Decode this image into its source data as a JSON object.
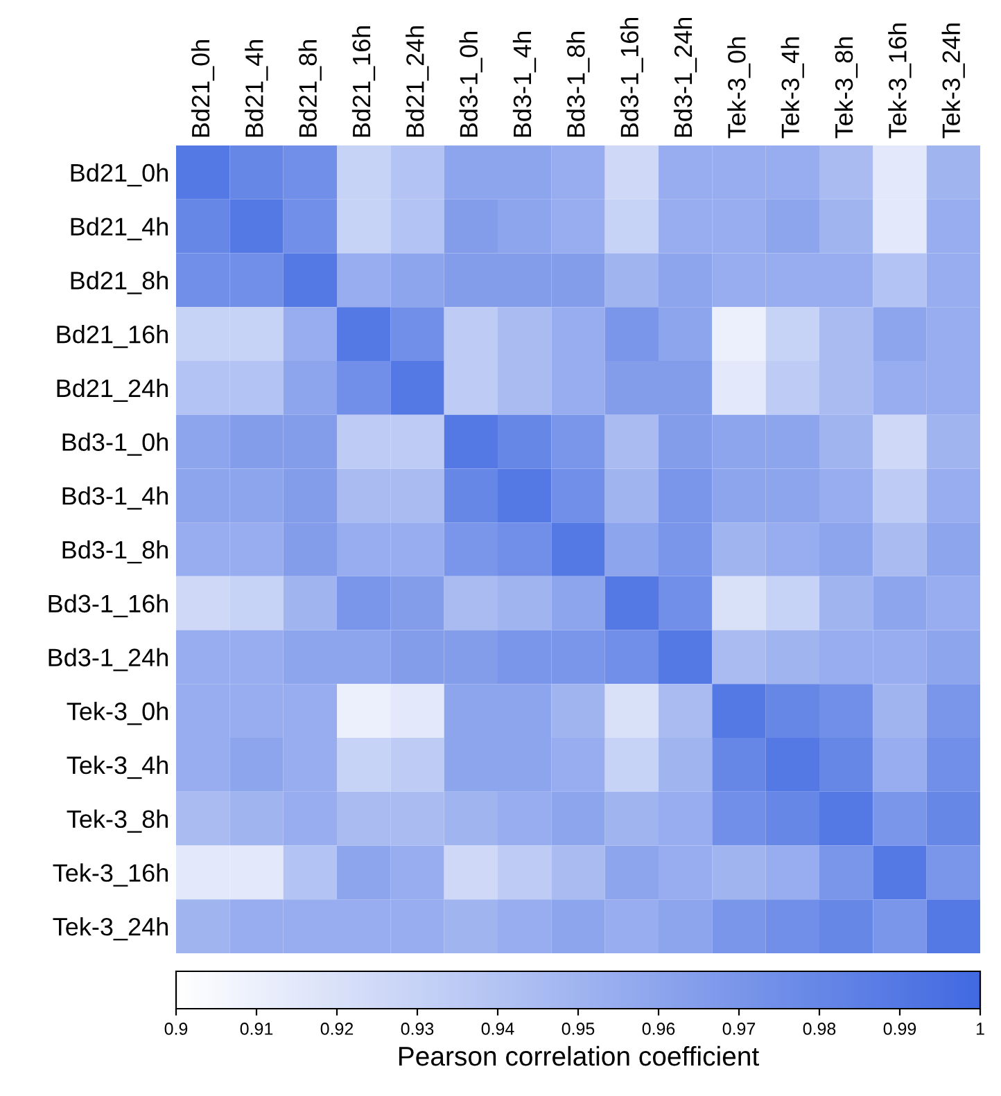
{
  "chart_data": {
    "type": "heatmap",
    "clabel": "Pearson correlation coefficient",
    "categories": [
      "Bd21_0h",
      "Bd21_4h",
      "Bd21_8h",
      "Bd21_16h",
      "Bd21_24h",
      "Bd3-1_0h",
      "Bd3-1_4h",
      "Bd3-1_8h",
      "Bd3-1_16h",
      "Bd3-1_24h",
      "Tek-3_0h",
      "Tek-3_4h",
      "Tek-3_8h",
      "Tek-3_16h",
      "Tek-3_24h"
    ],
    "y_categories": [
      "Bd21_0h",
      "Bd21_4h",
      "Bd21_8h",
      "Bd21_16h",
      "Bd21_24h",
      "Bd3-1_0h",
      "Bd3-1_4h",
      "Bd3-1_8h",
      "Bd3-1_16h",
      "Bd3-1_24h",
      "Tek-3_0h",
      "Tek-3_4h",
      "Tek-3_8h",
      "Tek-3_16h",
      "Tek-3_24h"
    ],
    "cells": [
      [
        0.99,
        0.98,
        0.975,
        0.93,
        0.94,
        0.96,
        0.96,
        0.955,
        0.925,
        0.955,
        0.955,
        0.955,
        0.945,
        0.915,
        0.95
      ],
      [
        0.98,
        0.99,
        0.975,
        0.93,
        0.94,
        0.965,
        0.96,
        0.955,
        0.93,
        0.955,
        0.955,
        0.96,
        0.95,
        0.915,
        0.955
      ],
      [
        0.975,
        0.975,
        0.99,
        0.955,
        0.96,
        0.965,
        0.965,
        0.965,
        0.95,
        0.96,
        0.955,
        0.955,
        0.955,
        0.94,
        0.955
      ],
      [
        0.93,
        0.93,
        0.955,
        0.99,
        0.975,
        0.935,
        0.945,
        0.955,
        0.97,
        0.96,
        0.91,
        0.93,
        0.945,
        0.96,
        0.955
      ],
      [
        0.94,
        0.94,
        0.96,
        0.975,
        0.99,
        0.935,
        0.945,
        0.955,
        0.965,
        0.965,
        0.915,
        0.935,
        0.945,
        0.955,
        0.955
      ],
      [
        0.96,
        0.965,
        0.965,
        0.935,
        0.935,
        0.99,
        0.98,
        0.97,
        0.945,
        0.965,
        0.96,
        0.96,
        0.95,
        0.925,
        0.95
      ],
      [
        0.96,
        0.96,
        0.965,
        0.945,
        0.945,
        0.98,
        0.99,
        0.975,
        0.95,
        0.97,
        0.96,
        0.96,
        0.955,
        0.935,
        0.955
      ],
      [
        0.955,
        0.955,
        0.965,
        0.955,
        0.955,
        0.97,
        0.975,
        0.99,
        0.96,
        0.97,
        0.95,
        0.955,
        0.96,
        0.945,
        0.96
      ],
      [
        0.925,
        0.93,
        0.95,
        0.97,
        0.965,
        0.945,
        0.95,
        0.96,
        0.99,
        0.975,
        0.92,
        0.93,
        0.95,
        0.96,
        0.955
      ],
      [
        0.955,
        0.955,
        0.96,
        0.96,
        0.965,
        0.965,
        0.97,
        0.97,
        0.975,
        0.99,
        0.945,
        0.95,
        0.955,
        0.955,
        0.96
      ],
      [
        0.955,
        0.955,
        0.955,
        0.91,
        0.915,
        0.96,
        0.96,
        0.95,
        0.92,
        0.945,
        0.99,
        0.98,
        0.975,
        0.95,
        0.97
      ],
      [
        0.955,
        0.96,
        0.955,
        0.93,
        0.935,
        0.96,
        0.96,
        0.955,
        0.93,
        0.95,
        0.98,
        0.99,
        0.98,
        0.955,
        0.975
      ],
      [
        0.945,
        0.95,
        0.955,
        0.945,
        0.945,
        0.95,
        0.955,
        0.96,
        0.95,
        0.955,
        0.975,
        0.98,
        0.99,
        0.97,
        0.98
      ],
      [
        0.915,
        0.915,
        0.94,
        0.96,
        0.955,
        0.925,
        0.935,
        0.945,
        0.96,
        0.955,
        0.95,
        0.955,
        0.97,
        0.99,
        0.97
      ],
      [
        0.95,
        0.955,
        0.955,
        0.955,
        0.955,
        0.95,
        0.955,
        0.96,
        0.955,
        0.96,
        0.97,
        0.975,
        0.98,
        0.97,
        0.99
      ]
    ],
    "clim": [
      0.9,
      1
    ],
    "cticks": [
      0.9,
      0.91,
      0.92,
      0.93,
      0.94,
      0.95,
      0.96,
      0.97,
      0.98,
      0.99,
      1
    ],
    "colors": [
      "#ffffff",
      "#4169e1"
    ]
  }
}
